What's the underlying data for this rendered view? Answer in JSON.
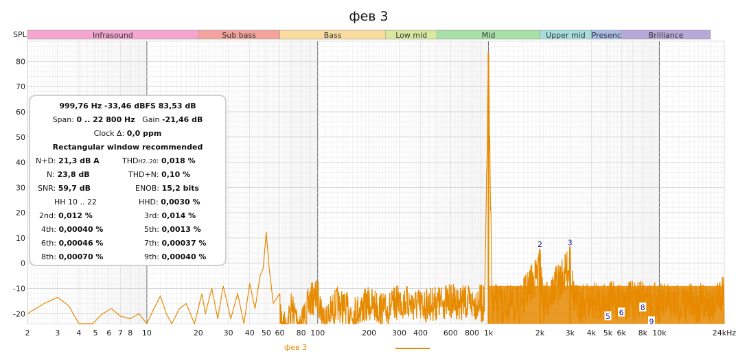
{
  "title": "фев 3",
  "y_axis_label": "SPL",
  "bands": [
    {
      "label": "Infrasound",
      "from": 2,
      "to": 20,
      "color": "#f4a6d0"
    },
    {
      "label": "Sub bass",
      "from": 20,
      "to": 60,
      "color": "#f4a39c"
    },
    {
      "label": "Bass",
      "from": 60,
      "to": 250,
      "color": "#fadd9e"
    },
    {
      "label": "Low mid",
      "from": 250,
      "to": 500,
      "color": "#d9e89c"
    },
    {
      "label": "Mid",
      "from": 500,
      "to": 2000,
      "color": "#a6e0a6"
    },
    {
      "label": "Upper mid",
      "from": 2000,
      "to": 4000,
      "color": "#a6dede"
    },
    {
      "label": "Presenc",
      "from": 4000,
      "to": 6000,
      "color": "#a9bde8"
    },
    {
      "label": "Brilliance",
      "from": 6000,
      "to": 20000,
      "color": "#b9a9d9"
    }
  ],
  "x_ticks": [
    {
      "v": 2,
      "t": "2"
    },
    {
      "v": 3,
      "t": "3"
    },
    {
      "v": 4,
      "t": "4"
    },
    {
      "v": 5,
      "t": "5"
    },
    {
      "v": 6,
      "t": "6"
    },
    {
      "v": 7,
      "t": "7"
    },
    {
      "v": 8,
      "t": "8"
    },
    {
      "v": 10,
      "t": "10"
    },
    {
      "v": 20,
      "t": "20"
    },
    {
      "v": 30,
      "t": "30"
    },
    {
      "v": 40,
      "t": "40"
    },
    {
      "v": 50,
      "t": "50"
    },
    {
      "v": 60,
      "t": "60"
    },
    {
      "v": 80,
      "t": "80"
    },
    {
      "v": 100,
      "t": "100"
    },
    {
      "v": 200,
      "t": "200"
    },
    {
      "v": 300,
      "t": "300"
    },
    {
      "v": 400,
      "t": "400"
    },
    {
      "v": 600,
      "t": "600"
    },
    {
      "v": 800,
      "t": "800"
    },
    {
      "v": 1000,
      "t": "1k"
    },
    {
      "v": 2000,
      "t": "2k"
    },
    {
      "v": 3000,
      "t": "3k"
    },
    {
      "v": 4000,
      "t": "4k"
    },
    {
      "v": 5000,
      "t": "5k"
    },
    {
      "v": 6000,
      "t": "6k"
    },
    {
      "v": 8000,
      "t": "8k"
    },
    {
      "v": 10000,
      "t": "10k"
    },
    {
      "v": 24000,
      "t": "24kHz"
    }
  ],
  "y_ticks": [
    -20,
    -10,
    0,
    10,
    20,
    30,
    40,
    50,
    60,
    70,
    80
  ],
  "info": {
    "line1": "999,76 Hz  -33,46 dBFS  83,53 dB",
    "span_label": "Span:",
    "span_value": "0 .. 22 800 Hz",
    "gain_label": "Gain",
    "gain_value": "-21,46 dB",
    "clock_label": "Clock Δ:",
    "clock_value": "0,0 ppm",
    "window_note": "Rectangular window recommended",
    "nd_label": "N+D:",
    "nd_value": "21,3 dB A",
    "thd_label": "THD",
    "thd_sub": "H2..20",
    "thd_value": "0,018 %",
    "n_label": "N:",
    "n_value": "23,8 dB",
    "thdn_label": "THD+N:",
    "thdn_value": "0,10 %",
    "snr_label": "SNR:",
    "snr_value": "59,7 dB",
    "enob_label": "ENOB:",
    "enob_value": "15,2 bits",
    "hh_label": "HH 10 .. 22",
    "hhd_label": "HHD:",
    "hhd_value": "0,0030 %",
    "h2_label": "2nd:",
    "h2_value": "0,012 %",
    "h3_label": "3rd:",
    "h3_value": "0,014 %",
    "h4_label": "4th:",
    "h4_value": "0,00040 %",
    "h5_label": "5th:",
    "h5_value": "0,0013 %",
    "h6_label": "6th:",
    "h6_value": "0,00046 %",
    "h7_label": "7th:",
    "h7_value": "0,00037 %",
    "h8_label": "8th:",
    "h8_value": "0,00070 %",
    "h9_label": "9th:",
    "h9_value": "0,00040 %"
  },
  "legend": {
    "name": "фев 3",
    "color": "#e68a00"
  },
  "chart_data": {
    "type": "line",
    "title": "фев 3",
    "ylabel": "SPL",
    "xlabel": "",
    "x_scale": "log",
    "xlim": [
      2,
      24000
    ],
    "ylim": [
      -24,
      88
    ],
    "grid": true,
    "series": [
      {
        "name": "фев 3",
        "color": "#e68a00",
        "points": [
          [
            2,
            -20
          ],
          [
            2.5,
            -16
          ],
          [
            3,
            -13.5
          ],
          [
            3.5,
            -17
          ],
          [
            4,
            -24
          ],
          [
            4.8,
            -24
          ],
          [
            5.5,
            -20
          ],
          [
            6.2,
            -18
          ],
          [
            7,
            -21
          ],
          [
            8,
            -22
          ],
          [
            9,
            -20
          ],
          [
            10,
            -24
          ],
          [
            11,
            -18
          ],
          [
            12,
            -13
          ],
          [
            13,
            -20
          ],
          [
            14,
            -24
          ],
          [
            15.5,
            -18
          ],
          [
            17,
            -16
          ],
          [
            19,
            -24
          ],
          [
            21,
            -12
          ],
          [
            22,
            -20
          ],
          [
            24,
            -10
          ],
          [
            26,
            -22
          ],
          [
            28,
            -9
          ],
          [
            31,
            -22
          ],
          [
            34,
            -12
          ],
          [
            37,
            -24
          ],
          [
            40,
            -8
          ],
          [
            43,
            -18
          ],
          [
            46,
            -5
          ],
          [
            48,
            -2
          ],
          [
            50,
            12.5
          ],
          [
            52,
            -2
          ],
          [
            55,
            -16
          ],
          [
            60,
            -12
          ],
          [
            65,
            -20
          ],
          [
            70,
            -11
          ],
          [
            80,
            -18
          ],
          [
            90,
            -8
          ],
          [
            100,
            -6
          ],
          [
            110,
            -16
          ],
          [
            130,
            -9
          ],
          [
            160,
            -13
          ],
          [
            200,
            -9
          ],
          [
            250,
            -12
          ],
          [
            300,
            -8
          ],
          [
            400,
            -10
          ],
          [
            600,
            -8
          ],
          [
            800,
            -9
          ],
          [
            950,
            -8
          ],
          [
            999.76,
            83.53
          ],
          [
            1050,
            -8
          ],
          [
            1500,
            -9
          ],
          [
            1999.5,
            5.5
          ],
          [
            2100,
            -8
          ],
          [
            2999.3,
            6.5
          ],
          [
            3200,
            -8
          ],
          [
            5000,
            -7
          ],
          [
            8000,
            -7
          ],
          [
            12000,
            -8
          ],
          [
            20000,
            -8
          ],
          [
            24000,
            -3
          ]
        ]
      }
    ],
    "peaks": [
      {
        "f": 999.76,
        "db": 83.53
      },
      {
        "f": 1999.5,
        "db": 5.5,
        "label": "2"
      },
      {
        "f": 2999.3,
        "db": 6.5,
        "label": "3"
      }
    ],
    "harmonic_markers": [
      {
        "label": "2",
        "f": 1999.5,
        "db": 7.5
      },
      {
        "label": "3",
        "f": 2999.3,
        "db": 8.2
      },
      {
        "label": "5",
        "f": 4998,
        "db": -21
      },
      {
        "label": "6",
        "f": 5998,
        "db": -19.5
      },
      {
        "label": "8",
        "f": 7998,
        "db": -17.5
      },
      {
        "label": "9",
        "f": 8998,
        "db": -23
      }
    ]
  }
}
